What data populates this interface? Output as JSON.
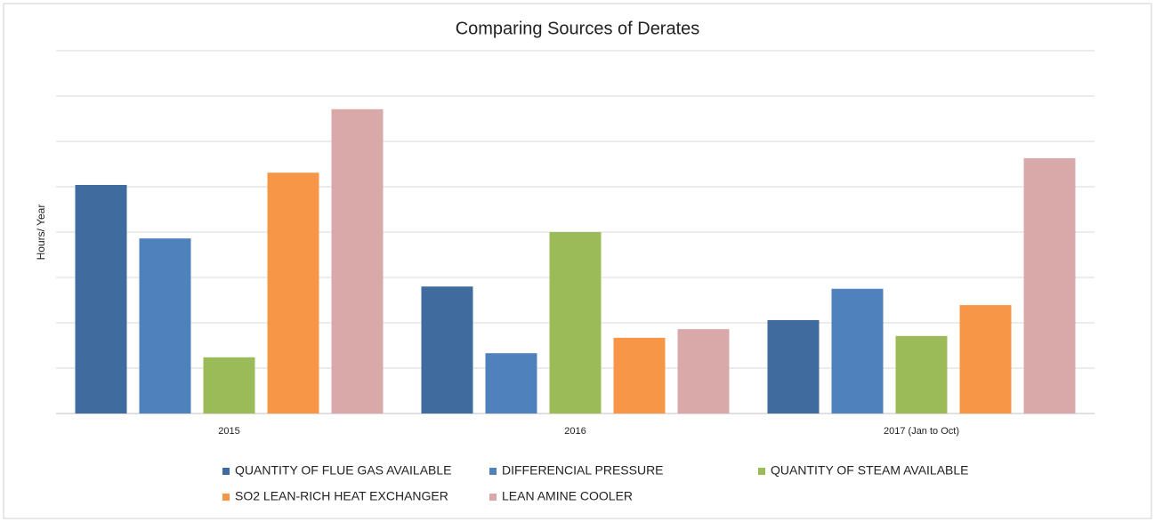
{
  "chart_data": {
    "type": "bar",
    "title": "Comparing Sources of Derates",
    "y_label": "Hours/ Year",
    "categories": [
      "2015",
      "2016",
      "2017 (Jan to Oct)"
    ],
    "series": [
      {
        "name": "QUANTITY OF FLUE GAS AVAILABLE",
        "color": "#3f6b9e",
        "values": [
          5.04,
          2.8,
          2.06
        ]
      },
      {
        "name": "DIFFERENCIAL PRESSURE",
        "color": "#4f81bd",
        "values": [
          3.86,
          1.33,
          2.75
        ]
      },
      {
        "name": "QUANTITY OF STEAM AVAILABLE",
        "color": "#9bbb59",
        "values": [
          1.24,
          4.0,
          1.71
        ]
      },
      {
        "name": "SO2 LEAN-RICH HEAT EXCHANGER",
        "color": "#f79646",
        "values": [
          5.31,
          1.67,
          2.39
        ]
      },
      {
        "name": "LEAN AMINE COOLER",
        "color": "#d9a9a9",
        "values": [
          6.71,
          1.86,
          5.63
        ]
      }
    ],
    "ylim": [
      0,
      8
    ],
    "yticks": [
      0,
      1,
      2,
      3,
      4,
      5,
      6,
      7,
      8
    ],
    "grid": true
  }
}
